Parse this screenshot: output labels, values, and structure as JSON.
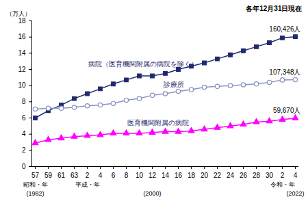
{
  "chart_data": {
    "type": "line",
    "note": "各年12月31日現在",
    "ylabel": "（万人）",
    "categories": [
      "57",
      "59",
      "61",
      "63",
      "2",
      "4",
      "6",
      "8",
      "10",
      "12",
      "14",
      "16",
      "18",
      "20",
      "22",
      "24",
      "26",
      "28",
      "30",
      "2",
      "4"
    ],
    "era_labels": [
      {
        "x_index": 0,
        "text": "昭和・年"
      },
      {
        "x_index": 4,
        "text": "平成・年"
      },
      {
        "x_index": 19,
        "text": "令和・年"
      }
    ],
    "year_labels": [
      {
        "x_index": 0,
        "text": "(1982)"
      },
      {
        "x_index": 9,
        "text": "(2000)"
      },
      {
        "x_index": 20,
        "text": "(2022)"
      }
    ],
    "ylim": [
      0,
      18
    ],
    "yticks": [
      0,
      2,
      4,
      6,
      8,
      10,
      12,
      14,
      16,
      18
    ],
    "grid": false,
    "series": [
      {
        "name": "病院（医育機関附属の病院を除く）",
        "color": "#1f2a6e",
        "marker": "square",
        "values": [
          6.0,
          6.9,
          7.6,
          8.4,
          9.0,
          9.6,
          10.2,
          10.7,
          11.2,
          11.2,
          11.5,
          12.0,
          12.4,
          12.8,
          13.3,
          13.8,
          14.3,
          14.8,
          15.3,
          15.9,
          16.0426
        ]
      },
      {
        "name": "診療所",
        "color": "#8a93c4",
        "marker": "circle-open",
        "values": [
          7.1,
          7.2,
          7.2,
          7.3,
          7.5,
          7.6,
          7.8,
          8.2,
          8.4,
          8.8,
          9.0,
          9.3,
          9.5,
          9.8,
          9.9,
          10.0,
          10.1,
          10.2,
          10.4,
          10.7,
          10.7348
        ]
      },
      {
        "name": "医育機関附属の病院",
        "color": "#ff00ff",
        "marker": "triangle",
        "values": [
          2.9,
          3.3,
          3.5,
          3.7,
          3.8,
          3.9,
          4.1,
          4.1,
          4.1,
          4.2,
          4.3,
          4.3,
          4.4,
          4.6,
          4.8,
          5.0,
          5.2,
          5.5,
          5.6,
          5.8,
          5.967
        ]
      }
    ],
    "annotations": [
      {
        "series": "病院（医育機関附属の病院を除く）",
        "text": "160,426人",
        "value": 16.0426
      },
      {
        "series": "診療所",
        "text": "107,348人",
        "value": 10.7348
      },
      {
        "series": "医育機関附属の病院",
        "text": "59,670人",
        "value": 5.967
      }
    ]
  }
}
